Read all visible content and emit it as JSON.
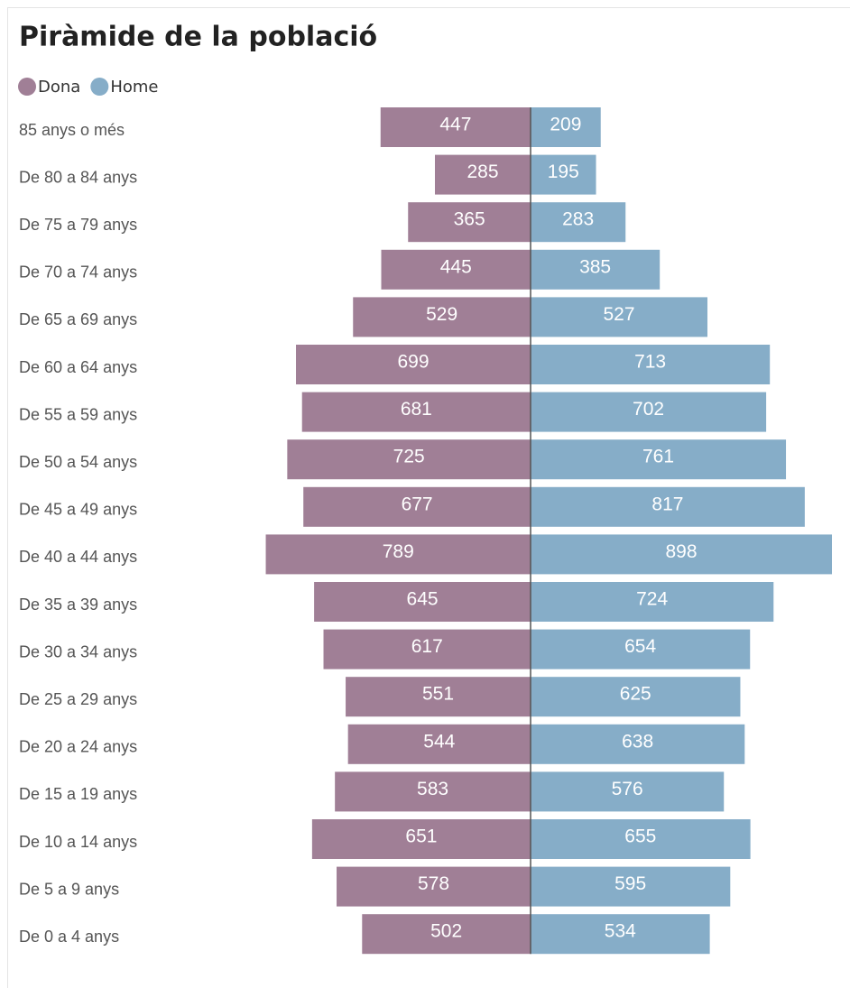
{
  "chart_data": {
    "type": "bar",
    "orientation": "horizontal",
    "title": "Piràmide de la població",
    "categories": [
      "85 anys o més",
      "De 80 a 84 anys",
      "De 75 a 79 anys",
      "De 70 a 74 anys",
      "De 65 a 69 anys",
      "De 60 a 64 anys",
      "De 55 a 59 anys",
      "De 50 a 54 anys",
      "De 45 a 49 anys",
      "De 40 a 44 anys",
      "De 35 a 39 anys",
      "De 30 a 34 anys",
      "De 25 a 29 anys",
      "De 20 a 24 anys",
      "De 15 a 19 anys",
      "De 10 a 14 anys",
      "De 5 a 9 anys",
      "De 0 a 4 anys"
    ],
    "series": [
      {
        "name": "Dona",
        "color": "#a07f96",
        "values": [
          447,
          285,
          365,
          445,
          529,
          699,
          681,
          725,
          677,
          789,
          645,
          617,
          551,
          544,
          583,
          651,
          578,
          502
        ]
      },
      {
        "name": "Home",
        "color": "#86adc8",
        "values": [
          209,
          195,
          283,
          385,
          527,
          713,
          702,
          761,
          817,
          898,
          724,
          654,
          625,
          638,
          576,
          655,
          595,
          534
        ]
      }
    ]
  }
}
